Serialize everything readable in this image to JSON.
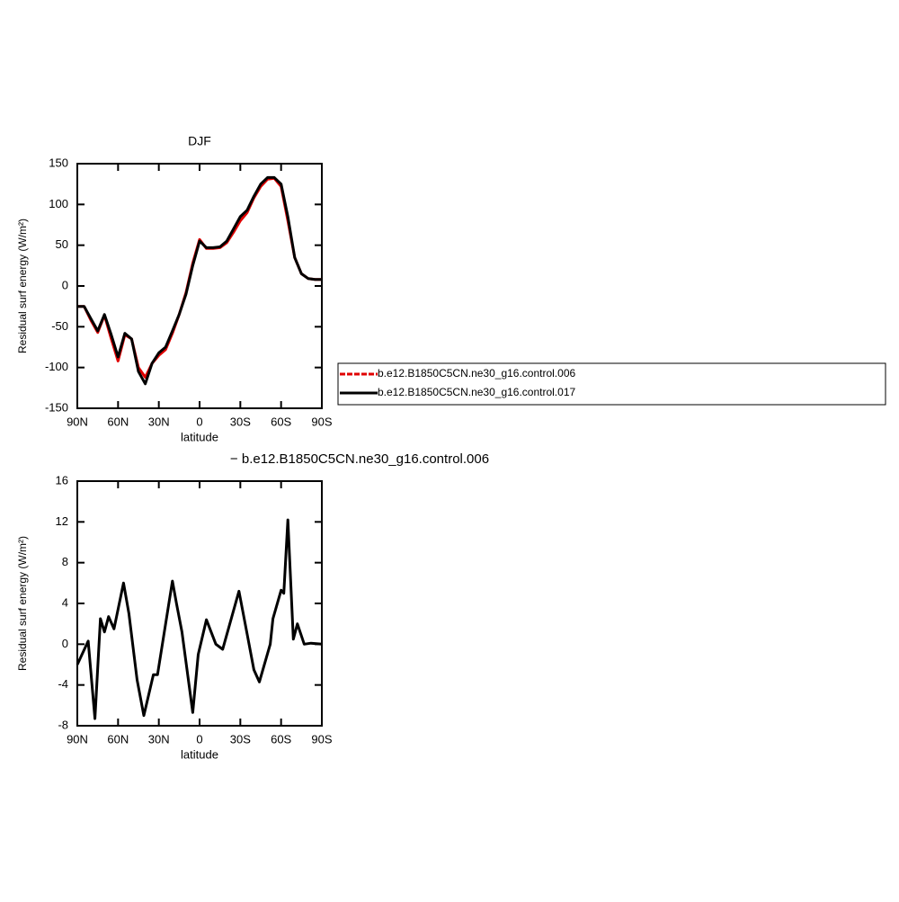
{
  "chart_data": [
    {
      "type": "line",
      "title": "DJF",
      "xlabel": "latitude",
      "ylabel": "Residual surf energy (W/m²)",
      "x": [
        90,
        85,
        80,
        75,
        70,
        65,
        60,
        55,
        50,
        45,
        40,
        35,
        30,
        25,
        20,
        15,
        10,
        5,
        0,
        -5,
        -10,
        -15,
        -20,
        -25,
        -30,
        -35,
        -40,
        -45,
        -50,
        -55,
        -60,
        -65,
        -70,
        -75,
        -80,
        -85,
        -90
      ],
      "series": [
        {
          "name": "b.e12.B1850C5CN.ne30_g16.control.006",
          "color": "#e00000",
          "values": [
            -25,
            -25,
            -42,
            -57,
            -36,
            -65,
            -92,
            -60,
            -65,
            -100,
            -112,
            -95,
            -85,
            -78,
            -58,
            -35,
            -8,
            28,
            57,
            46,
            46,
            47,
            53,
            66,
            80,
            90,
            108,
            122,
            131,
            132,
            122,
            80,
            35,
            15,
            9,
            8,
            8
          ]
        },
        {
          "name": "b.e12.B1850C5CN.ne30_g16.control.017",
          "color": "#000000",
          "values": [
            -25,
            -25,
            -40,
            -55,
            -35,
            -60,
            -87,
            -58,
            -65,
            -105,
            -120,
            -95,
            -82,
            -75,
            -55,
            -35,
            -10,
            25,
            55,
            47,
            47,
            48,
            55,
            70,
            85,
            93,
            110,
            125,
            133,
            133,
            125,
            85,
            35,
            15,
            9,
            8,
            8
          ]
        }
      ],
      "xlim": [
        90,
        -90
      ],
      "xticks": [
        {
          "value": 90,
          "label": "90N"
        },
        {
          "value": 60,
          "label": "60N"
        },
        {
          "value": 30,
          "label": "30N"
        },
        0,
        {
          "value": -30,
          "label": "30S"
        },
        {
          "value": -60,
          "label": "60S"
        },
        {
          "value": -90,
          "label": "90S"
        }
      ],
      "ylim": [
        -150,
        150
      ],
      "yticks": [
        -150,
        -100,
        -50,
        0,
        50,
        100,
        150
      ],
      "legend": "right"
    },
    {
      "type": "line",
      "title": "− b.e12.B1850C5CN.ne30_g16.control.006",
      "xlabel": "latitude",
      "ylabel": "Residual surf energy (W/m²)",
      "x": [
        90,
        82,
        77,
        73,
        70,
        67,
        63,
        56,
        52,
        46,
        41,
        34,
        31,
        20,
        17,
        13,
        5,
        1,
        -5,
        -12,
        -17,
        -29,
        -35,
        -40,
        -44,
        -52,
        -54,
        -60,
        -62,
        -65,
        -69,
        -72,
        -77,
        -82,
        -90
      ],
      "color": "#000000",
      "values": [
        -2,
        0.3,
        -7.3,
        2.5,
        1.2,
        2.7,
        1.5,
        6,
        3,
        -3.5,
        -7,
        -3,
        -3,
        6.2,
        4,
        1.2,
        -6.7,
        -1,
        2.4,
        0,
        -0.5,
        5.2,
        1,
        -2.5,
        -3.7,
        0,
        2.5,
        5.3,
        5,
        12.2,
        0.5,
        2,
        0,
        0.1,
        0
      ],
      "xlim": [
        90,
        -90
      ],
      "xticks": [
        {
          "value": 90,
          "label": "90N"
        },
        {
          "value": 60,
          "label": "60N"
        },
        {
          "value": 30,
          "label": "30N"
        },
        0,
        {
          "value": -30,
          "label": "30S"
        },
        {
          "value": -60,
          "label": "60S"
        },
        {
          "value": -90,
          "label": "90S"
        }
      ],
      "ylim": [
        -8,
        16
      ],
      "yticks": [
        -8,
        -4,
        0,
        4,
        8,
        12,
        16
      ]
    }
  ]
}
